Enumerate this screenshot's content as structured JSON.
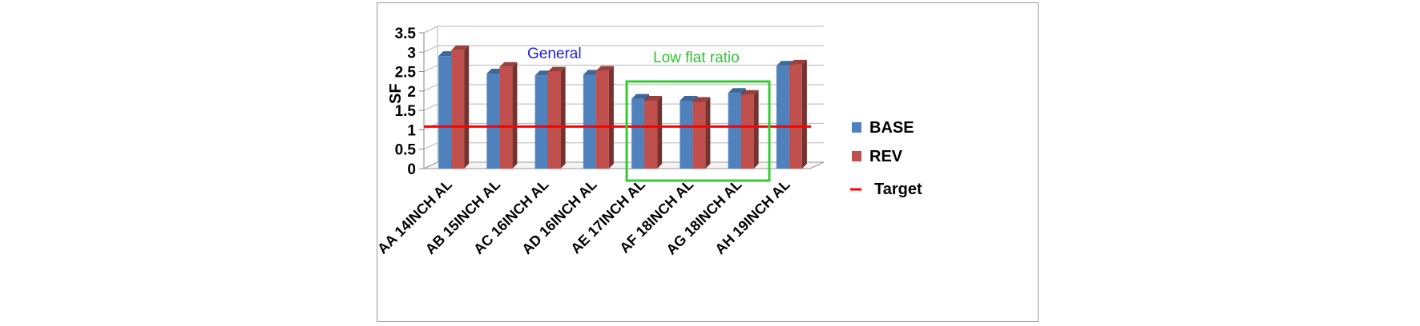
{
  "chart_data": {
    "type": "bar",
    "title": "",
    "xlabel": "",
    "ylabel": "SF",
    "ylim": [
      0,
      3.5
    ],
    "yticks": [
      "0",
      "0.5",
      "1",
      "1.5",
      "2",
      "2.5",
      "3",
      "3.5"
    ],
    "categories": [
      "AA 14INCH AL",
      "AB 15INCH AL",
      "AC 16INCH AL",
      "AD 16INCH AL",
      "AE 17INCH AL",
      "AF 18INCH AL",
      "AG 18INCH AL",
      "AH 19INCH AL"
    ],
    "series": [
      {
        "name": "BASE",
        "color": "#4f81bd",
        "values": [
          2.9,
          2.45,
          2.4,
          2.42,
          1.8,
          1.75,
          1.95,
          2.65
        ]
      },
      {
        "name": "REV",
        "color": "#c0504d",
        "values": [
          3.05,
          2.62,
          2.5,
          2.52,
          1.75,
          1.72,
          1.9,
          2.68
        ]
      }
    ],
    "target": {
      "name": "Target",
      "value": 1.0,
      "color": "#ff0000"
    },
    "grid": true,
    "legend": "right",
    "annotations": [
      {
        "text": "General",
        "color": "#1f1fe6"
      },
      {
        "text": "Low flat ratio",
        "color": "#2ec52e",
        "box_color": "#33cc33",
        "categories": [
          "AE 17INCH AL",
          "AF 18INCH AL",
          "AG 18INCH AL"
        ]
      }
    ]
  }
}
